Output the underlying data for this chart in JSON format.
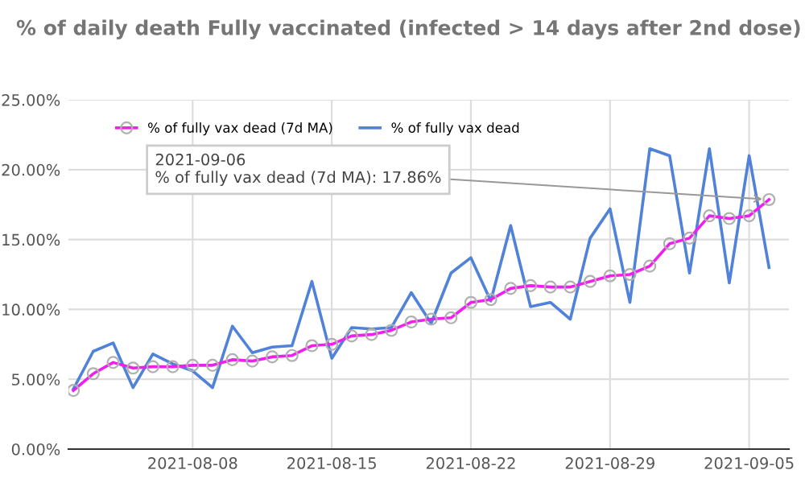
{
  "chart_data": {
    "type": "line",
    "title": "% of daily death Fully vaccinated (infected > 14 days after 2nd dose)",
    "x": [
      "2021-08-02",
      "2021-08-03",
      "2021-08-04",
      "2021-08-05",
      "2021-08-06",
      "2021-08-07",
      "2021-08-08",
      "2021-08-09",
      "2021-08-10",
      "2021-08-11",
      "2021-08-12",
      "2021-08-13",
      "2021-08-14",
      "2021-08-15",
      "2021-08-16",
      "2021-08-17",
      "2021-08-18",
      "2021-08-19",
      "2021-08-20",
      "2021-08-21",
      "2021-08-22",
      "2021-08-23",
      "2021-08-24",
      "2021-08-25",
      "2021-08-26",
      "2021-08-27",
      "2021-08-28",
      "2021-08-29",
      "2021-08-30",
      "2021-08-31",
      "2021-09-01",
      "2021-09-02",
      "2021-09-03",
      "2021-09-04",
      "2021-09-05",
      "2021-09-06"
    ],
    "series": [
      {
        "name": "% of fully vax dead (7d MA)",
        "color": "#f01ff0",
        "marker": "circle",
        "values": [
          4.2,
          5.4,
          6.2,
          5.8,
          5.9,
          5.9,
          6.0,
          6.0,
          6.4,
          6.3,
          6.6,
          6.7,
          7.4,
          7.5,
          8.1,
          8.2,
          8.5,
          9.1,
          9.3,
          9.4,
          10.5,
          10.7,
          11.5,
          11.7,
          11.6,
          11.6,
          12.0,
          12.4,
          12.5,
          13.1,
          14.7,
          15.1,
          16.7,
          16.5,
          16.7,
          17.86
        ]
      },
      {
        "name": "% of fully vax dead",
        "color": "#4f82d8",
        "marker": "none",
        "values": [
          4.3,
          7.0,
          7.6,
          4.4,
          6.8,
          6.1,
          5.6,
          4.4,
          8.8,
          6.9,
          7.3,
          7.4,
          12.0,
          6.5,
          8.7,
          8.6,
          8.7,
          11.2,
          9.0,
          12.6,
          13.7,
          10.6,
          16.0,
          10.2,
          10.5,
          9.3,
          15.1,
          17.2,
          10.5,
          21.5,
          21.0,
          12.6,
          21.5,
          11.9,
          21.0,
          13.0
        ]
      }
    ],
    "xlim": [
      "2021-08-01T18:00",
      "2021-09-07T00:00"
    ],
    "xticks": [
      {
        "value": "2021-08-08",
        "label": "2021-08-08"
      },
      {
        "value": "2021-08-15",
        "label": "2021-08-15"
      },
      {
        "value": "2021-08-22",
        "label": "2021-08-22"
      },
      {
        "value": "2021-08-29",
        "label": "2021-08-29"
      },
      {
        "value": "2021-09-05",
        "label": "2021-09-05"
      }
    ],
    "ylim": [
      0,
      25
    ],
    "yticks": [
      {
        "value": 0,
        "label": "0.00%"
      },
      {
        "value": 5,
        "label": "5.00%"
      },
      {
        "value": 10,
        "label": "10.00%"
      },
      {
        "value": 15,
        "label": "15.00%"
      },
      {
        "value": 20,
        "label": "20.00%"
      },
      {
        "value": 25,
        "label": "25.00%"
      }
    ],
    "grid": true,
    "legend": "top left",
    "line_style": "solid",
    "annotations": [
      {
        "text": "2021-09-06\n% of fully vax dead (7d MA): 17.86%",
        "x": "2021-09-06",
        "y": 17.86
      }
    ]
  }
}
